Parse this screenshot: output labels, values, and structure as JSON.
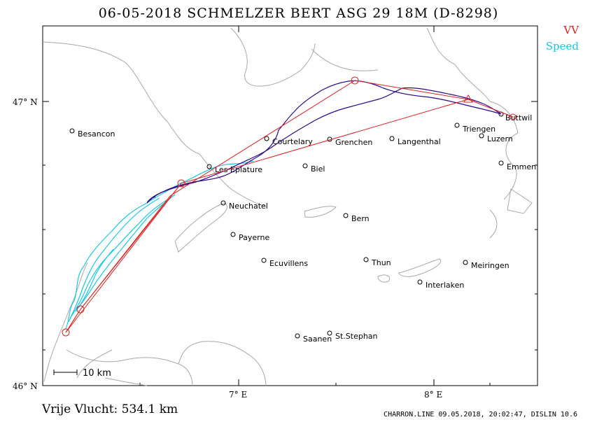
{
  "header": {
    "title": "06-05-2018    SCHMELZER BERT    ASG 29 18M (D-8298)"
  },
  "legend": {
    "vv_label": "VV",
    "speed_label": "Speed",
    "vv_color": "#e02020",
    "speed_color": "#18c8e8"
  },
  "map": {
    "lat_labels": [
      "47° N",
      "46° N"
    ],
    "lon_labels": [
      "7° E",
      "8° E"
    ],
    "scale_label": "10 km",
    "towns": [
      "Besancon",
      "Courtelary",
      "Grenchen",
      "Langenthal",
      "Triengen",
      "Luzern",
      "Buttwil",
      "Emmen",
      "Les Eplature",
      "Biel",
      "Neuchatel",
      "Bern",
      "Payerne",
      "Ecuvillens",
      "Thun",
      "Meiringen",
      "Interlaken",
      "Saanen",
      "St.Stephan"
    ],
    "track_color": "#2a0a8a",
    "task_color": "#e02020"
  },
  "footer": {
    "distance": "Vrije Vlucht:  534.1 km",
    "credit": "CHARRON.LINE 09.05.2018, 20:02:47, DISLIN 10.6"
  }
}
